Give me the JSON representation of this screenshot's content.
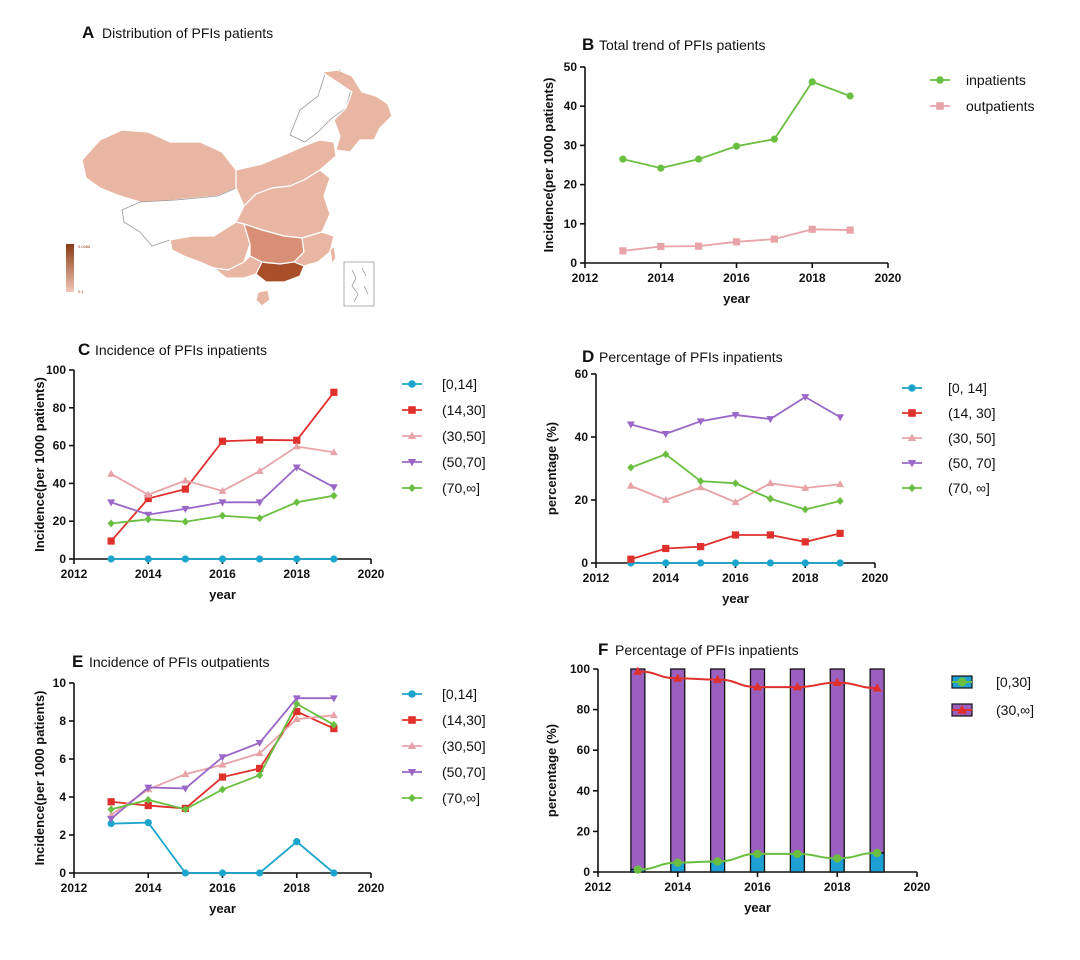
{
  "colors": {
    "green": "#6abf40",
    "pink": "#e7a3a8",
    "blue": "#1ba5cc",
    "red": "#e0302c",
    "purple": "#9a67c8",
    "bar_purple": "#9b5fc0",
    "bar_blue": "#1ea0d4",
    "map_light": "#e9b6a4",
    "map_mid": "#d98f76",
    "map_dark": "#a84e28",
    "map_outline": "#9a9a9a"
  },
  "map": {
    "letter": "A",
    "title": "Distribution of PFIs patients",
    "scale_max_label": "0.0386",
    "scale_min_label": "0.1"
  },
  "chart_data": [
    {
      "id": "B",
      "letter": "B",
      "type": "line",
      "title": "Total trend of PFIs patients",
      "xlabel": "year",
      "ylabel": "Incidence(per 1000 patients)",
      "xlim": [
        2012,
        2020
      ],
      "xticks": [
        2012,
        2014,
        2016,
        2018,
        2020
      ],
      "ylim": [
        0,
        50
      ],
      "yticks": [
        0,
        10,
        20,
        30,
        40,
        50
      ],
      "x": [
        2013,
        2014,
        2015,
        2016,
        2017,
        2018,
        2019
      ],
      "series": [
        {
          "name": "inpatients",
          "marker": "circle",
          "color": "#6abf40",
          "values": [
            26.5,
            24.2,
            26.5,
            29.8,
            31.6,
            46.2,
            42.6
          ]
        },
        {
          "name": "outpatients",
          "marker": "square",
          "color": "#e7a3a8",
          "values": [
            3.1,
            4.2,
            4.3,
            5.4,
            6.1,
            8.6,
            8.4
          ]
        }
      ]
    },
    {
      "id": "C",
      "letter": "C",
      "type": "line",
      "title": "Incidence of PFIs inpatients",
      "xlabel": "year",
      "ylabel": "Incidence(per 1000 patients)",
      "xlim": [
        2012,
        2020
      ],
      "xticks": [
        2012,
        2014,
        2016,
        2018,
        2020
      ],
      "ylim": [
        0,
        100
      ],
      "yticks": [
        0,
        20,
        40,
        60,
        80,
        100
      ],
      "x": [
        2013,
        2014,
        2015,
        2016,
        2017,
        2018,
        2019
      ],
      "series": [
        {
          "name": "[0,14]",
          "marker": "circle",
          "color": "#1ba5cc",
          "values": [
            0,
            0,
            0,
            0,
            0,
            0,
            0
          ]
        },
        {
          "name": "(14,30]",
          "marker": "square",
          "color": "#e0302c",
          "values": [
            9.5,
            32,
            37,
            62.3,
            63,
            62.8,
            88.2
          ]
        },
        {
          "name": "(30,50]",
          "marker": "triangle",
          "color": "#e7a3a8",
          "values": [
            45,
            34,
            41.5,
            36,
            46.5,
            59.5,
            56.5
          ]
        },
        {
          "name": "(50,70]",
          "marker": "triangle-down",
          "color": "#9a67c8",
          "values": [
            30,
            23.5,
            26.5,
            30,
            30,
            48.5,
            38
          ]
        },
        {
          "name": "(70,∞]",
          "marker": "diamond",
          "color": "#6abf40",
          "values": [
            18.8,
            21,
            19.7,
            22.9,
            21.6,
            30,
            33.5
          ]
        }
      ]
    },
    {
      "id": "D",
      "letter": "D",
      "type": "line",
      "title": "Percentage of PFIs inpatients",
      "xlabel": "year",
      "ylabel": "percentage (%)",
      "xlim": [
        2012,
        2020
      ],
      "xticks": [
        2012,
        2014,
        2016,
        2018,
        2020
      ],
      "ylim": [
        0,
        60
      ],
      "yticks": [
        0,
        20,
        40,
        60
      ],
      "x": [
        2013,
        2014,
        2015,
        2016,
        2017,
        2018,
        2019
      ],
      "series": [
        {
          "name": "[0, 14]",
          "marker": "circle",
          "color": "#1ba5cc",
          "values": [
            0,
            0,
            0,
            0,
            0,
            0,
            0
          ]
        },
        {
          "name": "(14, 30]",
          "marker": "square",
          "color": "#e0302c",
          "values": [
            1.2,
            4.6,
            5.2,
            8.9,
            8.9,
            6.7,
            9.4
          ]
        },
        {
          "name": "(30, 50]",
          "marker": "triangle",
          "color": "#e7a3a8",
          "values": [
            24.5,
            20,
            24,
            19.3,
            25.3,
            23.8,
            25
          ]
        },
        {
          "name": "(50, 70]",
          "marker": "triangle-down",
          "color": "#9a67c8",
          "values": [
            44,
            41,
            45,
            47,
            45.7,
            52.7,
            46.3
          ]
        },
        {
          "name": "(70, ∞]",
          "marker": "diamond",
          "color": "#6abf40",
          "values": [
            30.3,
            34.5,
            26,
            25.3,
            20.4,
            17,
            19.7
          ]
        }
      ]
    },
    {
      "id": "E",
      "letter": "E",
      "type": "line",
      "title": "Incidence of PFIs outpatients",
      "xlabel": "year",
      "ylabel": "Incidence(per 1000 patients)",
      "xlim": [
        2012,
        2020
      ],
      "xticks": [
        2012,
        2014,
        2016,
        2018,
        2020
      ],
      "ylim": [
        0,
        10
      ],
      "yticks": [
        0,
        2,
        4,
        6,
        8,
        10
      ],
      "x": [
        2013,
        2014,
        2015,
        2016,
        2017,
        2018,
        2019
      ],
      "series": [
        {
          "name": "[0,14]",
          "marker": "circle",
          "color": "#1ba5cc",
          "values": [
            2.6,
            2.65,
            0,
            0,
            0,
            1.65,
            0
          ]
        },
        {
          "name": "(14,30]",
          "marker": "square",
          "color": "#e0302c",
          "values": [
            3.75,
            3.55,
            3.4,
            5.05,
            5.5,
            8.5,
            7.6
          ]
        },
        {
          "name": "(30,50]",
          "marker": "triangle",
          "color": "#e7a3a8",
          "values": [
            3.05,
            4.4,
            5.2,
            5.7,
            6.3,
            8.1,
            8.3
          ]
        },
        {
          "name": "(50,70]",
          "marker": "triangle-down",
          "color": "#9a67c8",
          "values": [
            2.85,
            4.5,
            4.45,
            6.1,
            6.85,
            9.2,
            9.2
          ]
        },
        {
          "name": "(70,∞]",
          "marker": "diamond",
          "color": "#6abf40",
          "values": [
            3.35,
            3.85,
            3.35,
            4.4,
            5.15,
            8.9,
            7.8
          ]
        }
      ]
    },
    {
      "id": "F",
      "letter": "F",
      "type": "bar",
      "title": "Percentage of PFIs inpatients",
      "xlabel": "year",
      "ylabel": "percentage (%)",
      "xlim": [
        2012,
        2020
      ],
      "xticks": [
        2012,
        2014,
        2016,
        2018,
        2020
      ],
      "ylim": [
        0,
        100
      ],
      "yticks": [
        0,
        20,
        40,
        60,
        80,
        100
      ],
      "x": [
        2013,
        2014,
        2015,
        2016,
        2017,
        2018,
        2019
      ],
      "series": [
        {
          "name": "[0,30]",
          "marker": "circle",
          "color": "#6abf40",
          "bar_color": "#1ea0d4",
          "values": [
            1.2,
            4.6,
            5.2,
            8.9,
            8.9,
            6.7,
            9.4
          ]
        },
        {
          "name": "(30,∞]",
          "marker": "triangle",
          "color": "#e0302c",
          "bar_color": "#9b5fc0",
          "values": [
            98.8,
            95.4,
            94.8,
            91.1,
            91.1,
            93.3,
            90.6
          ]
        }
      ]
    }
  ]
}
